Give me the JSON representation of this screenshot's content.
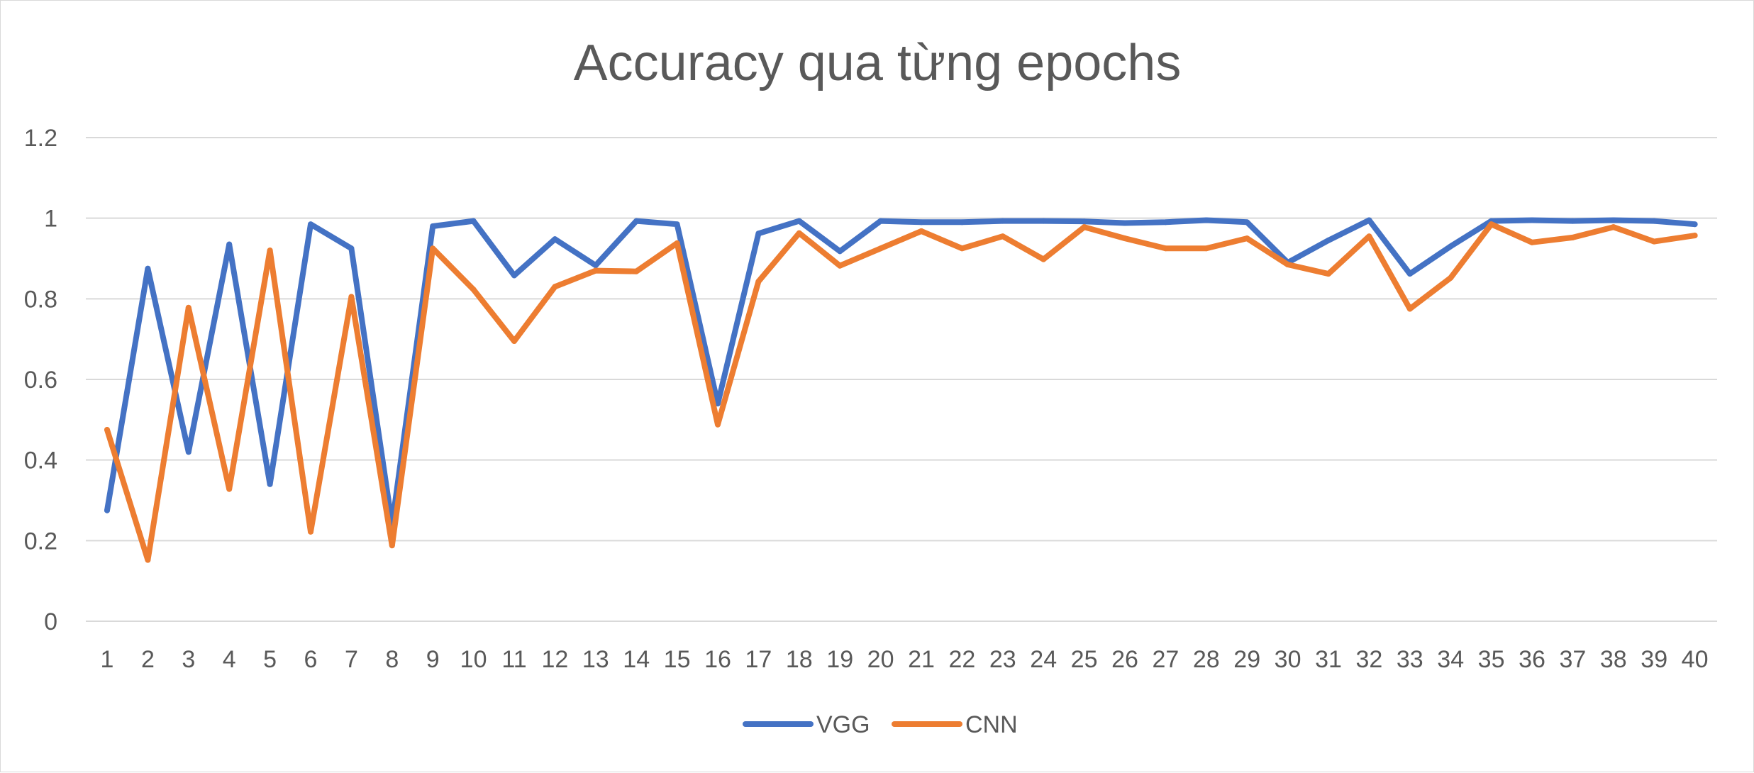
{
  "chart_data": {
    "type": "line",
    "title": "Accuracy qua từng epochs",
    "xlabel": "",
    "ylabel": "",
    "ylim": [
      0,
      1.2
    ],
    "yticks": [
      0,
      0.2,
      0.4,
      0.6,
      0.8,
      1,
      1.2
    ],
    "ytick_labels": [
      "0",
      "0.2",
      "0.4",
      "0.6",
      "0.8",
      "1",
      "1.2"
    ],
    "grid": true,
    "legend_position": "bottom",
    "categories": [
      "1",
      "2",
      "3",
      "4",
      "5",
      "6",
      "7",
      "8",
      "9",
      "10",
      "11",
      "12",
      "13",
      "14",
      "15",
      "16",
      "17",
      "18",
      "19",
      "20",
      "21",
      "22",
      "23",
      "24",
      "25",
      "26",
      "27",
      "28",
      "29",
      "30",
      "31",
      "32",
      "33",
      "34",
      "35",
      "36",
      "37",
      "38",
      "39",
      "40"
    ],
    "series": [
      {
        "name": "VGG",
        "color": "#4472C4",
        "values": [
          0.275,
          0.875,
          0.42,
          0.935,
          0.34,
          0.985,
          0.925,
          0.24,
          0.98,
          0.993,
          0.858,
          0.948,
          0.883,
          0.993,
          0.985,
          0.54,
          0.962,
          0.993,
          0.918,
          0.993,
          0.99,
          0.99,
          0.993,
          0.993,
          0.992,
          0.988,
          0.99,
          0.995,
          0.99,
          0.89,
          0.945,
          0.995,
          0.862,
          0.93,
          0.993,
          0.995,
          0.993,
          0.995,
          0.993,
          0.985
        ]
      },
      {
        "name": "CNN",
        "color": "#ED7D31",
        "values": [
          0.475,
          0.152,
          0.778,
          0.328,
          0.92,
          0.222,
          0.805,
          0.188,
          0.925,
          0.823,
          0.695,
          0.83,
          0.87,
          0.868,
          0.938,
          0.488,
          0.843,
          0.963,
          0.882,
          0.925,
          0.968,
          0.925,
          0.955,
          0.898,
          0.978,
          0.95,
          0.925,
          0.925,
          0.95,
          0.885,
          0.862,
          0.955,
          0.775,
          0.852,
          0.985,
          0.94,
          0.952,
          0.978,
          0.942,
          0.957
        ]
      }
    ]
  }
}
